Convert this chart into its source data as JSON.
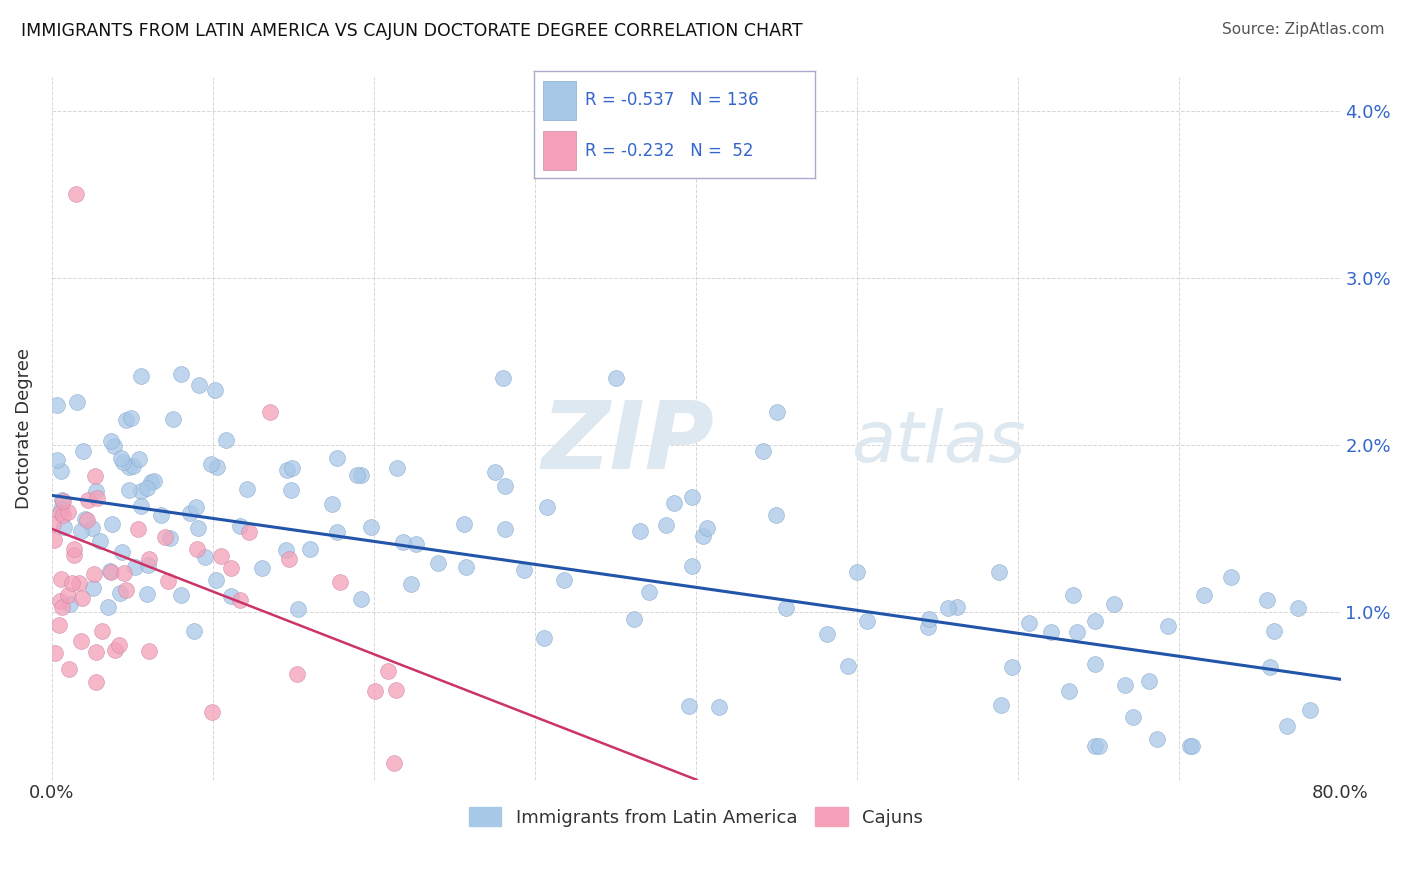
{
  "title": "IMMIGRANTS FROM LATIN AMERICA VS CAJUN DOCTORATE DEGREE CORRELATION CHART",
  "source": "Source: ZipAtlas.com",
  "ylabel": "Doctorate Degree",
  "blue_R": -0.537,
  "blue_N": 136,
  "pink_R": -0.232,
  "pink_N": 52,
  "blue_label": "Immigrants from Latin America",
  "pink_label": "Cajuns",
  "background_color": "#ffffff",
  "blue_color": "#a8c8e8",
  "pink_color": "#f4a0b8",
  "blue_line_color": "#2255aa",
  "pink_line_color": "#cc3366",
  "grid_color": "#cccccc",
  "title_color": "#111111",
  "source_color": "#555555",
  "legend_text_color": "#3366cc",
  "watermark_color": "#dde8f0",
  "xlim": [
    0,
    80
  ],
  "ylim": [
    0,
    0.042
  ],
  "yticks": [
    0.0,
    0.01,
    0.02,
    0.03,
    0.04
  ],
  "ytick_labels": [
    "",
    "1.0%",
    "2.0%",
    "3.0%",
    "4.0%"
  ]
}
